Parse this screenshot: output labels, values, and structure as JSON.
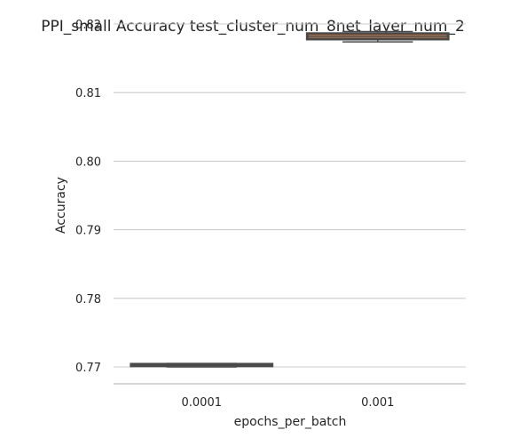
{
  "chart_data": {
    "type": "box",
    "title": "PPI_small Accuracy test_cluster_num_8net_layer_num_2",
    "xlabel": "epochs_per_batch",
    "ylabel": "Accuracy",
    "categories": [
      "0.0001",
      "0.001"
    ],
    "ylim": [
      0.7675,
      0.82
    ],
    "yticks": [
      "0.77",
      "0.78",
      "0.79",
      "0.80",
      "0.81",
      "0.82"
    ],
    "grid": "horizontal",
    "boxes": [
      {
        "category": "0.0001",
        "whisker_low": 0.77,
        "q1": 0.77015,
        "median": 0.7702,
        "q3": 0.7704,
        "whisker_high": 0.7705,
        "color": "#4c72b0"
      },
      {
        "category": "0.001",
        "whisker_low": 0.8174,
        "q1": 0.8178,
        "median": 0.8182,
        "q3": 0.8186,
        "whisker_high": 0.8189,
        "color": "#dd8452"
      }
    ]
  }
}
